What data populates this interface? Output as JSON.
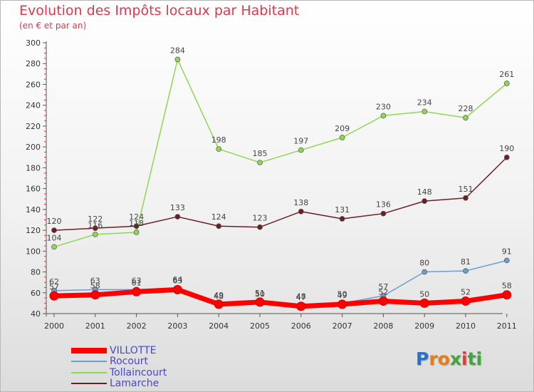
{
  "title": "Evolution des Impôts locaux par Habitant",
  "subtitle": "(en € et par an)",
  "logo": {
    "letters": [
      "P",
      "r",
      "o",
      "x",
      "i",
      "t",
      "i"
    ],
    "colors": [
      "#2e6fc4",
      "#e57d1c",
      "#e57d1c",
      "#3fa83c",
      "#d8403a",
      "#3fa83c",
      "#3fa83c"
    ]
  },
  "chart_data": {
    "type": "line",
    "title": "Evolution des Impôts locaux par Habitant",
    "subtitle": "(en € et par an)",
    "xlabel": "",
    "ylabel": "",
    "x": [
      "2000",
      "2001",
      "2002",
      "2003",
      "2004",
      "2005",
      "2006",
      "2007",
      "2008",
      "2009",
      "2010",
      "2011"
    ],
    "ylim": [
      40,
      300
    ],
    "yticks": [
      "40",
      "60",
      "80",
      "100",
      "120",
      "140",
      "160",
      "180",
      "200",
      "220",
      "240",
      "260",
      "280",
      "300"
    ],
    "grid": false,
    "legend_position": "bottom-left",
    "series": [
      {
        "name": "VILLOTTE",
        "color": "#ff0000",
        "values": [
          57,
          58,
          61,
          63,
          49,
          51,
          47,
          49,
          52,
          50,
          52,
          58
        ],
        "labels": [
          "57",
          "58",
          "61",
          "63",
          "49",
          "51",
          "47",
          "49",
          "52",
          "50",
          "52",
          "58"
        ],
        "emphasis": true
      },
      {
        "name": "Rocourt",
        "color": "#6a9ed2",
        "values": [
          62,
          63,
          63,
          64,
          48,
          50,
          48,
          50,
          57,
          80,
          81,
          91
        ],
        "labels": [
          "62",
          "63",
          "63",
          "64",
          "48",
          "50",
          "48",
          "50",
          "57",
          "80",
          "81",
          "91"
        ],
        "emphasis": false
      },
      {
        "name": "Tollaincourt",
        "color": "#8ed851",
        "values": [
          104,
          116,
          118,
          284,
          198,
          185,
          197,
          209,
          230,
          234,
          228,
          261
        ],
        "labels": [
          "104",
          "116",
          "118",
          "284",
          "198",
          "185",
          "197",
          "209",
          "230",
          "234",
          "228",
          "261"
        ],
        "emphasis": false
      },
      {
        "name": "Lamarche",
        "color": "#6b1f24",
        "values": [
          120,
          122,
          124,
          133,
          124,
          123,
          138,
          131,
          136,
          148,
          151,
          190
        ],
        "labels": [
          "120",
          "122",
          "124",
          "133",
          "124",
          "123",
          "138",
          "131",
          "136",
          "148",
          "151",
          "190"
        ],
        "emphasis": false
      }
    ]
  }
}
